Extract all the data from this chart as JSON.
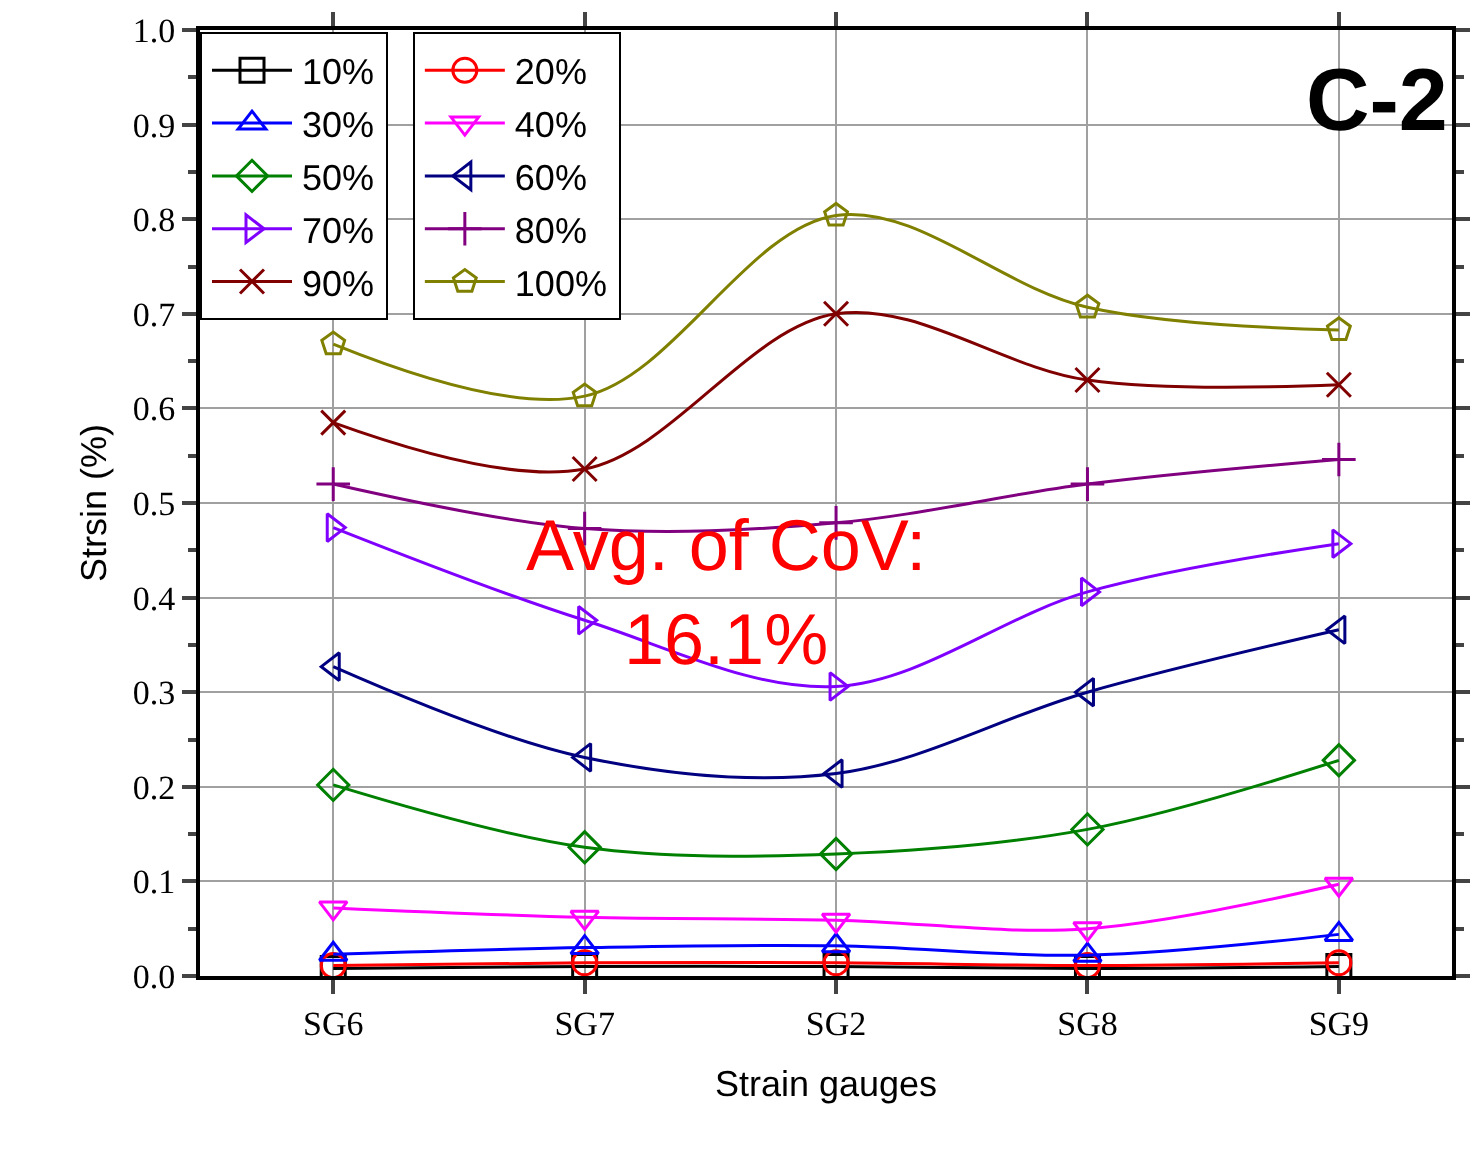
{
  "chart_data": {
    "type": "line",
    "xlabel": "Strain gauges",
    "ylabel": "Strsin (%)",
    "categories": [
      "SG6",
      "SG7",
      "SG2",
      "SG8",
      "SG9"
    ],
    "series": [
      {
        "name": "10%",
        "color": "#000000",
        "marker": "square",
        "values": [
          0.008,
          0.01,
          0.01,
          0.008,
          0.01
        ]
      },
      {
        "name": "20%",
        "color": "#ff0000",
        "marker": "circle",
        "values": [
          0.011,
          0.014,
          0.014,
          0.011,
          0.014
        ]
      },
      {
        "name": "30%",
        "color": "#0000ff",
        "marker": "triangle",
        "values": [
          0.023,
          0.03,
          0.032,
          0.022,
          0.044
        ]
      },
      {
        "name": "40%",
        "color": "#ff00ff",
        "marker": "triangle",
        "values": [
          0.072,
          0.062,
          0.059,
          0.05,
          0.097
        ]
      },
      {
        "name": "50%",
        "color": "#008000",
        "marker": "diamond",
        "values": [
          0.202,
          0.136,
          0.129,
          0.155,
          0.228
        ]
      },
      {
        "name": "60%",
        "color": "#000080",
        "marker": "triangle",
        "values": [
          0.327,
          0.231,
          0.214,
          0.3,
          0.366
        ]
      },
      {
        "name": "70%",
        "color": "#8000ff",
        "marker": "triangle",
        "values": [
          0.474,
          0.376,
          0.306,
          0.406,
          0.457
        ]
      },
      {
        "name": "80%",
        "color": "#800080",
        "marker": "cross",
        "values": [
          0.52,
          0.473,
          0.479,
          0.52,
          0.546
        ]
      },
      {
        "name": "90%",
        "color": "#800000",
        "marker": "cross",
        "values": [
          0.585,
          0.536,
          0.7,
          0.63,
          0.625
        ]
      },
      {
        "name": "100%",
        "color": "#808000",
        "marker": "star",
        "values": [
          0.668,
          0.613,
          0.804,
          0.707,
          0.683
        ]
      }
    ],
    "ylim": [
      0,
      1
    ],
    "yticks": [
      {
        "value": 0,
        "label": "0.0"
      },
      {
        "value": 0.1,
        "label": "0.1"
      },
      {
        "value": 0.2,
        "label": "0.2"
      },
      {
        "value": 0.3,
        "label": "0.3"
      },
      {
        "value": 0.4,
        "label": "0.4"
      },
      {
        "value": 0.5,
        "label": "0.5"
      },
      {
        "value": 0.6,
        "label": "0.6"
      },
      {
        "value": 0.7,
        "label": "0.7"
      },
      {
        "value": 0.8,
        "label": "0.8"
      },
      {
        "value": 0.9,
        "label": "0.9"
      },
      {
        "value": 1,
        "label": "1.0"
      }
    ],
    "grid": true,
    "legend": "top left",
    "line_style": "solid",
    "annotations": [
      "C-2",
      "Avg. of CoV:\n16.1%"
    ]
  }
}
